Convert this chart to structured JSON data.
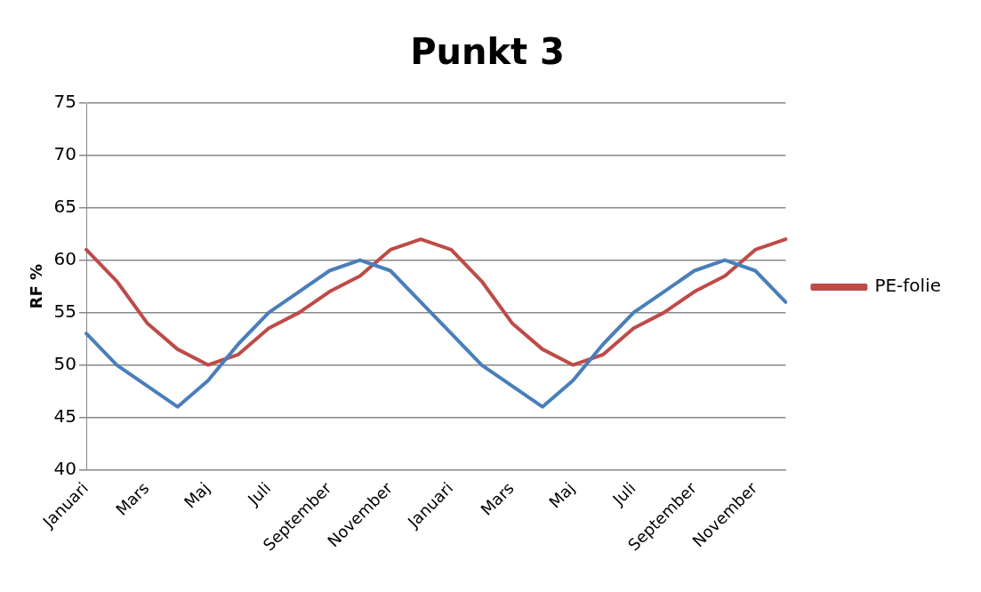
{
  "chart_data": {
    "type": "line",
    "title": "Punkt 3",
    "ylabel": "RF %",
    "categories": [
      "Januari",
      null,
      "Mars",
      null,
      "Maj",
      null,
      "Juli",
      null,
      "September",
      null,
      "November",
      null,
      "Januari",
      null,
      "Mars",
      null,
      "Maj",
      null,
      "Juli",
      null,
      "September",
      null,
      "November",
      null
    ],
    "series": [
      {
        "color": "#4a7ebb",
        "values": [
          53,
          50,
          48,
          46,
          48.5,
          52,
          55,
          57,
          59,
          60,
          59,
          56,
          53,
          50,
          48,
          46,
          48.5,
          52,
          55,
          57,
          59,
          60,
          59,
          56
        ]
      },
      {
        "name": "PE-folie",
        "color": "#be4b48",
        "values": [
          61,
          58,
          54,
          51.5,
          50,
          51,
          53.5,
          55,
          57,
          58.5,
          61,
          62,
          61,
          58,
          54,
          51.5,
          50,
          51,
          53.5,
          55,
          57,
          58.5,
          61,
          62
        ]
      }
    ],
    "ylim": [
      40,
      75
    ],
    "yticks": [
      40,
      45,
      50,
      55,
      60,
      65,
      70,
      75
    ],
    "grid": "y",
    "legend": "right",
    "marker": "none",
    "line_style": "solid"
  }
}
